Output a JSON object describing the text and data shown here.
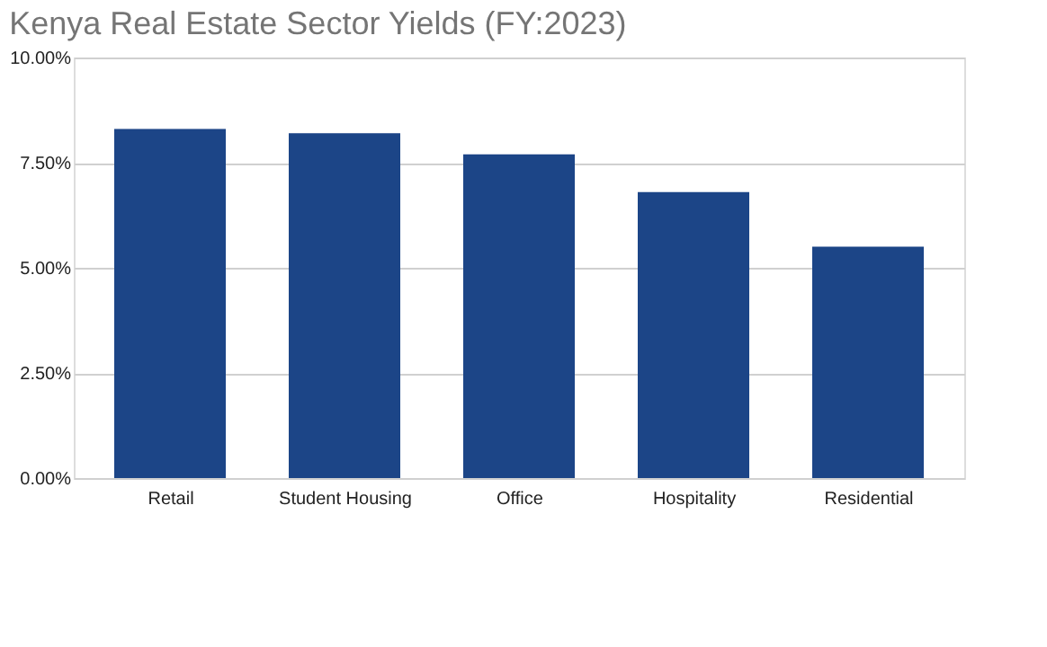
{
  "chart_data": {
    "type": "bar",
    "title": "Kenya Real Estate Sector Yields (FY:2023)",
    "categories": [
      "Retail",
      "Student Housing",
      "Office",
      "Hospitality",
      "Residential"
    ],
    "values": [
      8.3,
      8.2,
      7.7,
      6.8,
      5.5
    ],
    "color": "#1c4587",
    "ylim": [
      0,
      10
    ],
    "yticks": [
      {
        "value": 0,
        "label": "0.00%"
      },
      {
        "value": 2.5,
        "label": "2.50%"
      },
      {
        "value": 5,
        "label": "5.00%"
      },
      {
        "value": 7.5,
        "label": "7.50%"
      },
      {
        "value": 10,
        "label": "10.00%"
      }
    ],
    "grid": "y"
  }
}
